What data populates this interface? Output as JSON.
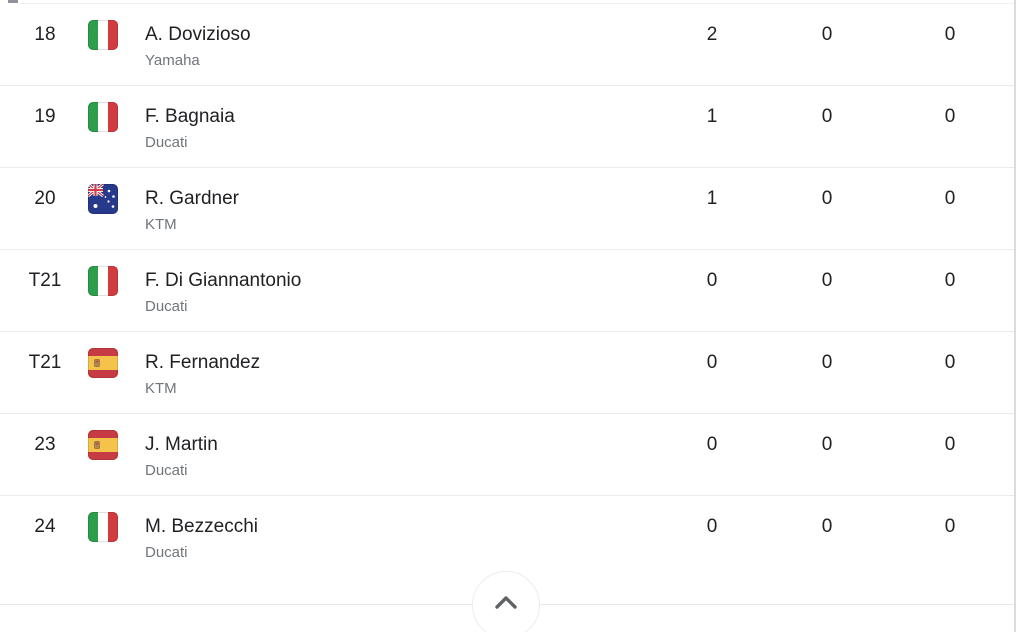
{
  "table": {
    "rows": [
      {
        "rank": "18",
        "flag": "italy",
        "name": "A. Dovizioso",
        "team": "Yamaha",
        "stats": [
          "2",
          "0",
          "0"
        ]
      },
      {
        "rank": "19",
        "flag": "italy",
        "name": "F. Bagnaia",
        "team": "Ducati",
        "stats": [
          "1",
          "0",
          "0"
        ]
      },
      {
        "rank": "20",
        "flag": "australia",
        "name": "R. Gardner",
        "team": "KTM",
        "stats": [
          "1",
          "0",
          "0"
        ]
      },
      {
        "rank": "T21",
        "flag": "italy",
        "name": "F. Di Giannantonio",
        "team": "Ducati",
        "stats": [
          "0",
          "0",
          "0"
        ]
      },
      {
        "rank": "T21",
        "flag": "spain",
        "name": "R. Fernandez",
        "team": "KTM",
        "stats": [
          "0",
          "0",
          "0"
        ]
      },
      {
        "rank": "23",
        "flag": "spain",
        "name": "J. Martin",
        "team": "Ducati",
        "stats": [
          "0",
          "0",
          "0"
        ]
      },
      {
        "rank": "24",
        "flag": "italy",
        "name": "M. Bezzecchi",
        "team": "Ducati",
        "stats": [
          "0",
          "0",
          "0"
        ]
      }
    ]
  },
  "footer": {
    "scroll_to_top_icon": "chevron-up-icon"
  },
  "colors": {
    "text_primary": "#202124",
    "text_secondary": "#70757a",
    "divider": "#e9ebed",
    "chevron": "#5f6368",
    "flag_italy": {
      "green": "#2f9e4c",
      "white": "#ffffff",
      "red": "#d23c40"
    },
    "flag_australia": {
      "blue": "#27398b",
      "red": "#d04048",
      "white": "#ffffff"
    },
    "flag_spain": {
      "red": "#c73b44",
      "yellow": "#f6c34a",
      "emblem": "#b1874f",
      "emblem_dark": "#8a6b46"
    }
  }
}
